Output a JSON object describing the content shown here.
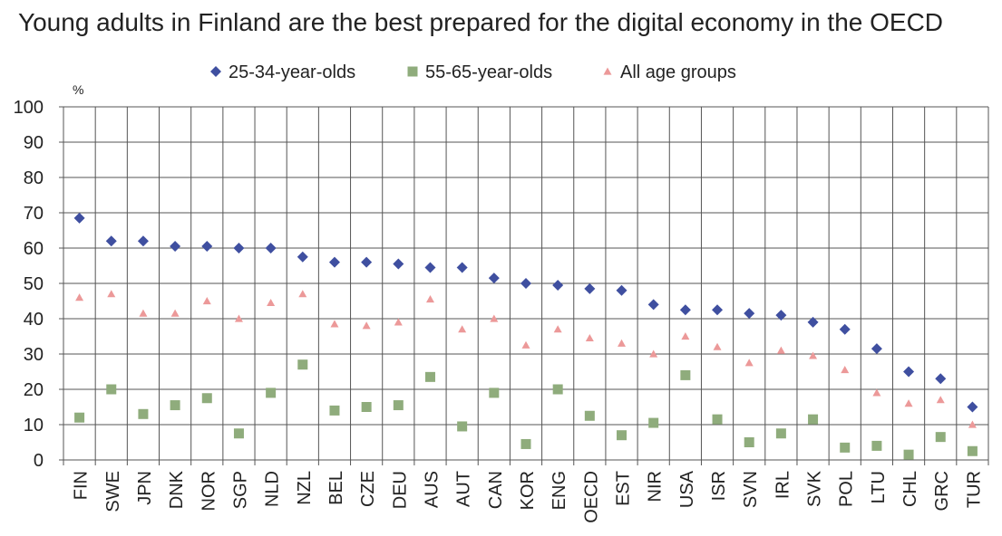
{
  "chart_data": {
    "type": "scatter",
    "title": "Young adults in Finland are the best prepared for the digital economy in the OECD",
    "ylabel": "%",
    "ylim": [
      0,
      100
    ],
    "yticks": [
      0,
      10,
      20,
      30,
      40,
      50,
      60,
      70,
      80,
      90,
      100
    ],
    "grid": true,
    "legend_position": "top",
    "categories": [
      "FIN",
      "SWE",
      "JPN",
      "DNK",
      "NOR",
      "SGP",
      "NLD",
      "NZL",
      "BEL",
      "CZE",
      "DEU",
      "AUS",
      "AUT",
      "CAN",
      "KOR",
      "ENG",
      "OECD",
      "EST",
      "NIR",
      "USA",
      "ISR",
      "SVN",
      "IRL",
      "SVK",
      "POL",
      "LTU",
      "CHL",
      "GRC",
      "TUR"
    ],
    "series": [
      {
        "name": "25-34-year-olds",
        "marker": "diamond",
        "color": "#3f4fa0",
        "values": [
          68.5,
          62,
          62,
          60.5,
          60.5,
          60,
          60,
          57.5,
          56,
          56,
          55.5,
          54.5,
          54.5,
          51.5,
          50,
          49.5,
          48.5,
          48,
          44,
          42.5,
          42.5,
          41.5,
          41,
          39,
          37,
          31.5,
          25,
          23,
          15
        ]
      },
      {
        "name": "55-65-year-olds",
        "marker": "square",
        "color": "#8fac7c",
        "values": [
          12,
          20,
          13,
          15.5,
          17.5,
          7.5,
          19,
          27,
          14,
          15,
          15.5,
          23.5,
          9.5,
          19,
          4.5,
          20,
          12.5,
          7,
          10.5,
          24,
          11.5,
          5,
          7.5,
          11.5,
          3.5,
          4,
          1.5,
          6.5,
          2.5
        ]
      },
      {
        "name": "All age groups",
        "marker": "triangle",
        "color": "#ec9999",
        "values": [
          46,
          47,
          41.5,
          41.5,
          45,
          40,
          44.5,
          47,
          38.5,
          38,
          39,
          45.5,
          37,
          40,
          32.5,
          37,
          34.5,
          33,
          30,
          35,
          32,
          27.5,
          31,
          29.5,
          25.5,
          19,
          16,
          17,
          10
        ]
      }
    ]
  }
}
